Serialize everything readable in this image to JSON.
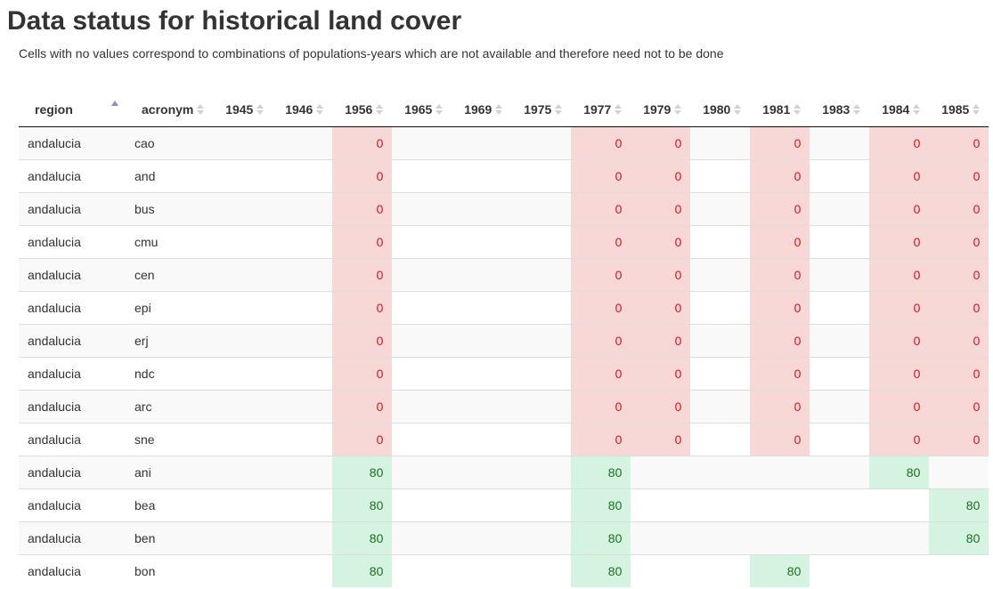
{
  "page": {
    "title": "Data status for historical land cover",
    "subtitle": "Cells with no values correspond to combinations of populations-years which are not available and therefore need not to be done"
  },
  "colors": {
    "missing_bg": "#f8d8d6",
    "missing_text": "#d8141c",
    "done_bg": "#d4f4e1",
    "done_text": "#1b6e1b",
    "sort_active": "#8a8fc8"
  },
  "table": {
    "sorted_column": "region",
    "sort_direction": "ascending",
    "columns": [
      "region",
      "acronym",
      "1945",
      "1946",
      "1956",
      "1965",
      "1969",
      "1975",
      "1977",
      "1979",
      "1980",
      "1981",
      "1983",
      "1984",
      "1985"
    ],
    "rows": [
      [
        "andalucia",
        "cao",
        "",
        "",
        "0",
        "",
        "",
        "",
        "0",
        "0",
        "",
        "0",
        "",
        "0",
        "0"
      ],
      [
        "andalucia",
        "and",
        "",
        "",
        "0",
        "",
        "",
        "",
        "0",
        "0",
        "",
        "0",
        "",
        "0",
        "0"
      ],
      [
        "andalucia",
        "bus",
        "",
        "",
        "0",
        "",
        "",
        "",
        "0",
        "0",
        "",
        "0",
        "",
        "0",
        "0"
      ],
      [
        "andalucia",
        "cmu",
        "",
        "",
        "0",
        "",
        "",
        "",
        "0",
        "0",
        "",
        "0",
        "",
        "0",
        "0"
      ],
      [
        "andalucia",
        "cen",
        "",
        "",
        "0",
        "",
        "",
        "",
        "0",
        "0",
        "",
        "0",
        "",
        "0",
        "0"
      ],
      [
        "andalucia",
        "epi",
        "",
        "",
        "0",
        "",
        "",
        "",
        "0",
        "0",
        "",
        "0",
        "",
        "0",
        "0"
      ],
      [
        "andalucia",
        "erj",
        "",
        "",
        "0",
        "",
        "",
        "",
        "0",
        "0",
        "",
        "0",
        "",
        "0",
        "0"
      ],
      [
        "andalucia",
        "ndc",
        "",
        "",
        "0",
        "",
        "",
        "",
        "0",
        "0",
        "",
        "0",
        "",
        "0",
        "0"
      ],
      [
        "andalucia",
        "arc",
        "",
        "",
        "0",
        "",
        "",
        "",
        "0",
        "0",
        "",
        "0",
        "",
        "0",
        "0"
      ],
      [
        "andalucia",
        "sne",
        "",
        "",
        "0",
        "",
        "",
        "",
        "0",
        "0",
        "",
        "0",
        "",
        "0",
        "0"
      ],
      [
        "andalucia",
        "ani",
        "",
        "",
        "80",
        "",
        "",
        "",
        "80",
        "",
        "",
        "",
        "",
        "80",
        ""
      ],
      [
        "andalucia",
        "bea",
        "",
        "",
        "80",
        "",
        "",
        "",
        "80",
        "",
        "",
        "",
        "",
        "",
        "80"
      ],
      [
        "andalucia",
        "ben",
        "",
        "",
        "80",
        "",
        "",
        "",
        "80",
        "",
        "",
        "",
        "",
        "",
        "80"
      ],
      [
        "andalucia",
        "bon",
        "",
        "",
        "80",
        "",
        "",
        "",
        "80",
        "",
        "",
        "80",
        "",
        "",
        ""
      ]
    ]
  }
}
